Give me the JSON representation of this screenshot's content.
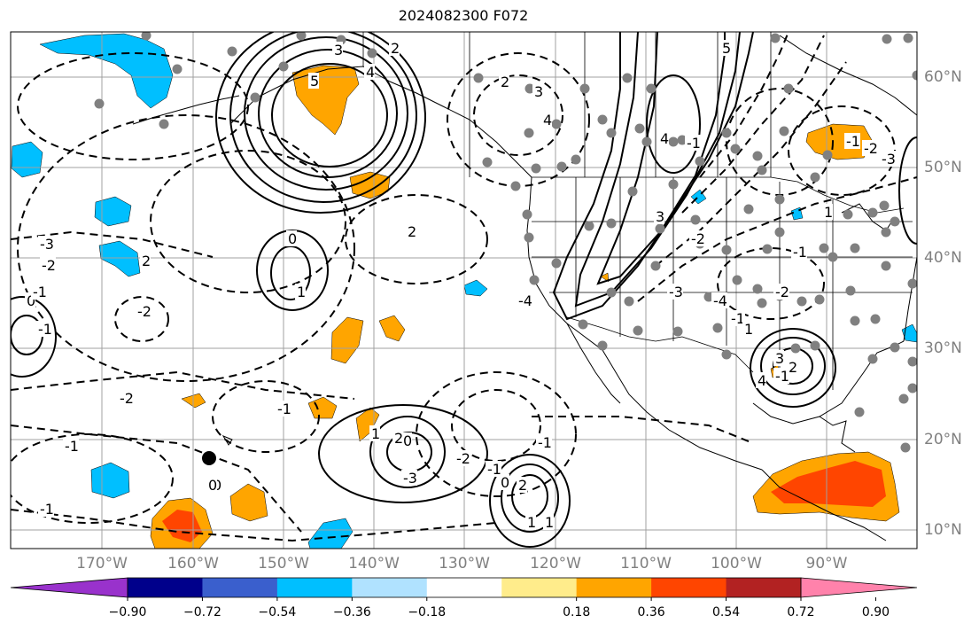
{
  "title": "2024082300 F072",
  "lon_labels": [
    "170°W",
    "160°W",
    "150°W",
    "140°W",
    "130°W",
    "120°W",
    "110°W",
    "100°W",
    "90°W"
  ],
  "lat_labels": [
    "60°N",
    "50°N",
    "40°N",
    "30°N",
    "20°N",
    "10°N"
  ],
  "colorbar": {
    "labels": [
      "−0.90",
      "−0.72",
      "−0.54",
      "−0.36",
      "−0.18",
      "0.18",
      "0.36",
      "0.54",
      "0.72",
      "0.90"
    ],
    "colors": [
      "#9932cc",
      "#00008b",
      "#3a5fcd",
      "#00bfff",
      "#b0e2ff",
      "#ffffff",
      "#ffec8b",
      "#ffa500",
      "#ff4500",
      "#b22222",
      "#ff82ab"
    ]
  },
  "contour_labels": [
    "3",
    "2",
    "4",
    "5",
    "5",
    "3",
    "4",
    "2",
    "-3",
    "-2",
    "0",
    "-1",
    "2",
    "0",
    "1",
    "-1",
    "-2",
    "-2",
    "-1",
    "-1",
    "-1",
    "0",
    "0",
    "2",
    "1",
    "-1",
    "0",
    "2",
    "1",
    "1",
    "2",
    "3",
    "4",
    "-1",
    "-2",
    "-3",
    "-4",
    "-1",
    "1",
    "2",
    "3",
    "4",
    "-1",
    "-2",
    "-3",
    "-2",
    "-1",
    "-1",
    "-2",
    "-3",
    "-4",
    "-1",
    "1",
    "0"
  ]
}
